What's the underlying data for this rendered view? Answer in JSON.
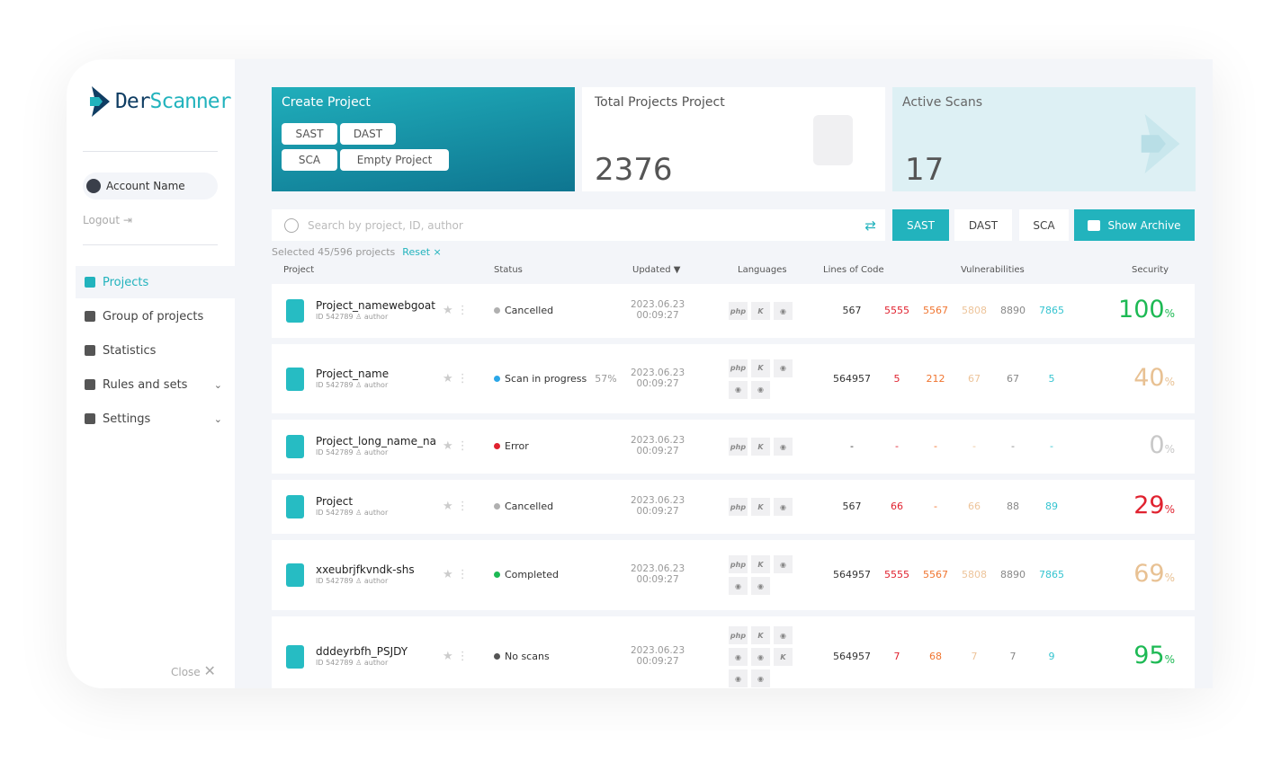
{
  "brand": {
    "name_a": "Der",
    "name_b": "Scanner"
  },
  "sidebar": {
    "account": "Account Name",
    "logout": "Logout",
    "close": "Close",
    "items": [
      {
        "label": "Projects",
        "active": true
      },
      {
        "label": "Group of projects"
      },
      {
        "label": "Statistics"
      },
      {
        "label": "Rules and sets",
        "chevron": true
      },
      {
        "label": "Settings",
        "chevron": true
      }
    ]
  },
  "tiles": {
    "create": {
      "title": "Create Project",
      "buttons": [
        "SAST",
        "DAST",
        "SCA",
        "Empty Project"
      ]
    },
    "total": {
      "title": "Total Projects Project",
      "value": "2376"
    },
    "active": {
      "title": "Active Scans",
      "value": "17"
    }
  },
  "search": {
    "placeholder": "Search by project, ID, author"
  },
  "filters": [
    "SAST",
    "DAST",
    "SCA"
  ],
  "archive": "Show Archive",
  "selection": {
    "text": "Selected 45/596 projects",
    "reset": "Reset ×"
  },
  "columns": {
    "project": "Project",
    "status": "Status",
    "updated": "Updated ▼",
    "languages": "Languages",
    "loc": "Lines of Code",
    "vulns": "Vulnerabilities",
    "security": "Security"
  },
  "colors": {
    "accent": "#22b3bd",
    "critical": "#e0222f",
    "high": "#f07530",
    "medium": "#edc49a",
    "low": "#888888",
    "info": "#35c4d0"
  },
  "rows": [
    {
      "name": "Project_namewebgoat",
      "id": "ID 542789",
      "author": "author",
      "status": "Cancelled",
      "status_color": "#b0b0b0",
      "progress": "",
      "updated": [
        "2023.06.23",
        "00:09:27"
      ],
      "langs": [
        "php",
        "kotlin",
        "python"
      ],
      "loc": "567",
      "vulns": [
        "5555",
        "5567",
        "5808",
        "8890",
        "7865"
      ],
      "security": "100",
      "sec_color": "#1db954"
    },
    {
      "name": "Project_name",
      "id": "ID 542789",
      "author": "author",
      "status": "Scan in progress",
      "status_color": "#2ba7e8",
      "progress": "57%",
      "updated": [
        "2023.06.23",
        "00:09:27"
      ],
      "langs": [
        "php",
        "kotlin",
        "python",
        "python",
        "python"
      ],
      "loc": "564957",
      "vulns": [
        "5",
        "212",
        "67",
        "67",
        "5"
      ],
      "security": "40",
      "sec_color": "#e8c193"
    },
    {
      "name": "Project_long_name_na",
      "id": "ID 542789",
      "author": "author",
      "status": "Error",
      "status_color": "#e0222f",
      "progress": "",
      "updated": [
        "2023.06.23",
        "00:09:27"
      ],
      "langs": [
        "php",
        "kotlin",
        "python"
      ],
      "loc": "-",
      "vulns": [
        "-",
        "-",
        "-",
        "-",
        "-"
      ],
      "security": "0",
      "sec_color": "#c8c8c8"
    },
    {
      "name": "Project",
      "id": "ID 542789",
      "author": "author",
      "status": "Cancelled",
      "status_color": "#b0b0b0",
      "progress": "",
      "updated": [
        "2023.06.23",
        "00:09:27"
      ],
      "langs": [
        "php",
        "kotlin",
        "python"
      ],
      "loc": "567",
      "vulns": [
        "66",
        "-",
        "66",
        "88",
        "89"
      ],
      "security": "29",
      "sec_color": "#e0222f"
    },
    {
      "name": "xxeubrjfkvndk-shs",
      "id": "ID 542789",
      "author": "author",
      "status": "Completed",
      "status_color": "#1db954",
      "progress": "",
      "updated": [
        "2023.06.23",
        "00:09:27"
      ],
      "langs": [
        "php",
        "kotlin",
        "python",
        "python",
        "python"
      ],
      "loc": "564957",
      "vulns": [
        "5555",
        "5567",
        "5808",
        "8890",
        "7865"
      ],
      "security": "69",
      "sec_color": "#e8c193"
    },
    {
      "name": "dddeyrbfh_PSJDY",
      "id": "ID 542789",
      "author": "author",
      "status": "No scans",
      "status_color": "#555555",
      "progress": "",
      "updated": [
        "2023.06.23",
        "00:09:27"
      ],
      "langs": [
        "php",
        "kotlin",
        "python",
        "python",
        "python",
        "kotlin",
        "python",
        "python"
      ],
      "loc": "564957",
      "vulns": [
        "7",
        "68",
        "7",
        "7",
        "9"
      ],
      "security": "95",
      "sec_color": "#1db954"
    }
  ]
}
